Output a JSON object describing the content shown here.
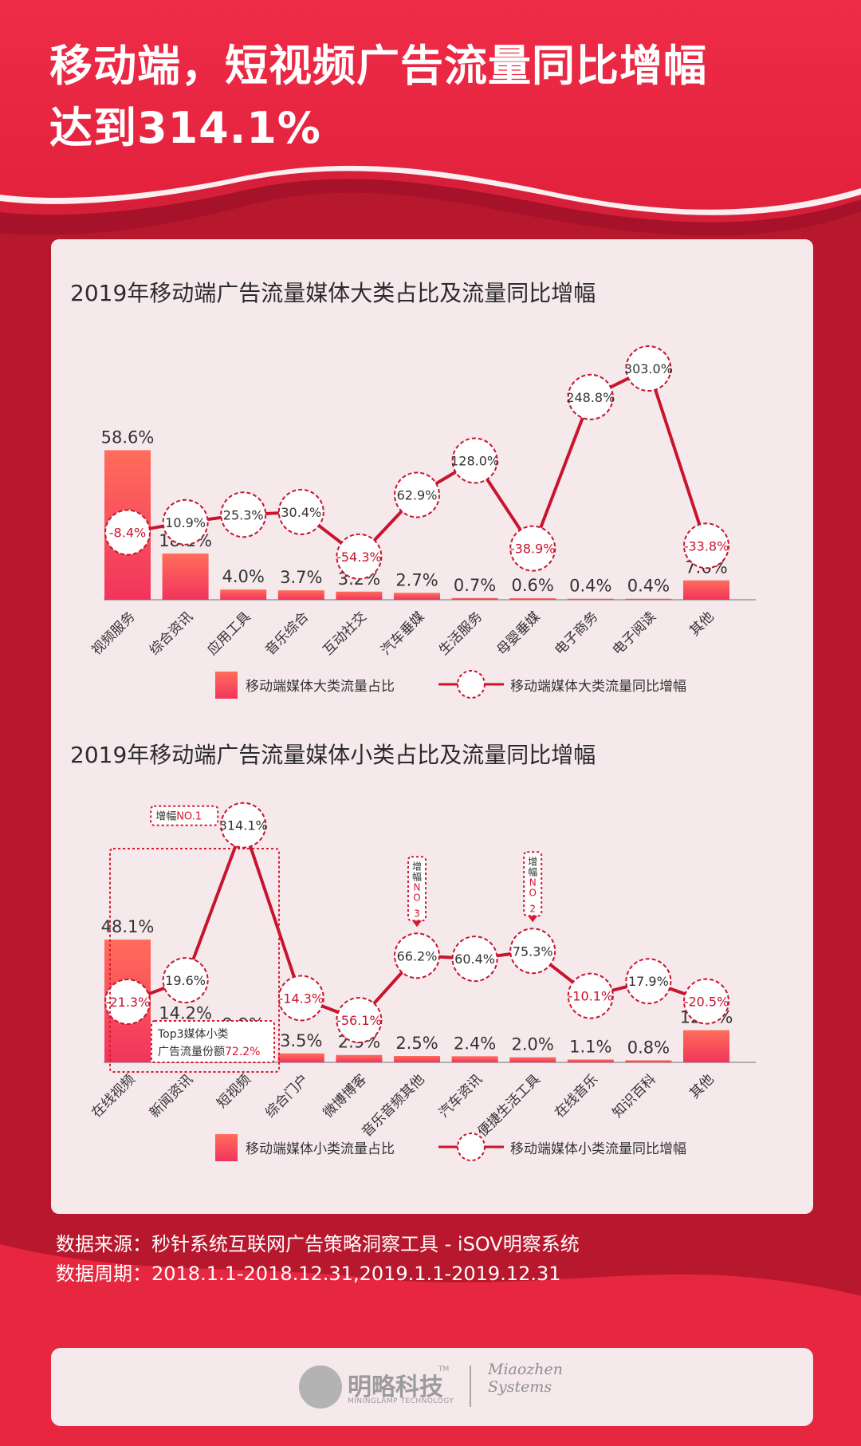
{
  "header": {
    "title_line1": "移动端，短视频广告流量同比增幅",
    "title_line2": "达到314.1%"
  },
  "colors": {
    "background": "#b8182d",
    "header_red": "#e62a45",
    "panel": "#f6e9ec",
    "bar_top": "#ff6d5b",
    "bar_bottom": "#f2345c",
    "line": "#c8152f",
    "negative_text": "#c8152f",
    "note_highlight": "#d8182f"
  },
  "chart_data": [
    {
      "type": "bar",
      "title": "2019年移动端广告流量媒体大类占比及流量同比增幅",
      "categories": [
        "视频服务",
        "综合资讯",
        "应用工具",
        "音乐综合",
        "互动社交",
        "汽车垂媒",
        "生活服务",
        "母婴垂媒",
        "电子商务",
        "电子阅读",
        "其他"
      ],
      "bar_labels": [
        "58.6%",
        "18.1%",
        "4.0%",
        "3.7%",
        "3.2%",
        "2.7%",
        "0.7%",
        "0.6%",
        "0.4%",
        "0.4%",
        "7.6%"
      ],
      "line_labels": [
        "-8.4%",
        "10.9%",
        "25.3%",
        "30.4%",
        "-54.3%",
        "62.9%",
        "128.0%",
        "-38.9%",
        "248.8%",
        "303.0%",
        "-33.8%"
      ],
      "series": [
        {
          "name": "移动端媒体大类流量占比",
          "type": "bar",
          "values": [
            58.6,
            18.1,
            4.0,
            3.7,
            3.2,
            2.7,
            0.7,
            0.6,
            0.4,
            0.4,
            7.6
          ]
        },
        {
          "name": "移动端媒体大类流量同比增幅",
          "type": "line",
          "values": [
            -8.4,
            10.9,
            25.3,
            30.4,
            -54.3,
            62.9,
            128.0,
            -38.9,
            248.8,
            303.0,
            -33.8
          ]
        }
      ],
      "legend": [
        "移动端媒体大类流量占比",
        "移动端媒体大类流量同比增幅"
      ],
      "legend_position": "bottom",
      "grid": false,
      "annotations": []
    },
    {
      "type": "bar",
      "title": "2019年移动端广告流量媒体小类占比及流量同比增幅",
      "categories": [
        "在线视频",
        "新闻资讯",
        "短视频",
        "综合门户",
        "微博博客",
        "音乐音频其他",
        "汽车资讯",
        "便捷生活工具",
        "在线音乐",
        "知识百科",
        "其他"
      ],
      "bar_labels": [
        "48.1%",
        "14.2%",
        "9.9%",
        "3.5%",
        "2.9%",
        "2.5%",
        "2.4%",
        "2.0%",
        "1.1%",
        "0.8%",
        "12.6%"
      ],
      "line_labels": [
        "-21.3%",
        "19.6%",
        "314.1%",
        "-14.3%",
        "-56.1%",
        "66.2%",
        "60.4%",
        "75.3%",
        "-10.1%",
        "17.9%",
        "-20.5%"
      ],
      "series": [
        {
          "name": "移动端媒体小类流量占比",
          "type": "bar",
          "values": [
            48.1,
            14.2,
            9.9,
            3.5,
            2.9,
            2.5,
            2.4,
            2.0,
            1.1,
            0.8,
            12.6
          ]
        },
        {
          "name": "移动端媒体小类流量同比增幅",
          "type": "line",
          "values": [
            -21.3,
            19.6,
            314.1,
            -14.3,
            -56.1,
            66.2,
            60.4,
            75.3,
            -10.1,
            17.9,
            -20.5
          ]
        }
      ],
      "legend": [
        "移动端媒体小类流量占比",
        "移动端媒体小类流量同比增幅"
      ],
      "legend_position": "bottom",
      "grid": false,
      "annotations": [
        {
          "text_a": "增幅",
          "text_b": "NO.1",
          "target": 2
        },
        {
          "text_a": "增幅",
          "text_b": "NO.2",
          "target": 7
        },
        {
          "text_a": "增幅",
          "text_b": "NO.3",
          "target": 5
        },
        {
          "text_a": "Top3媒体小类",
          "text_b": "广告流量份额",
          "text_c": "72.2%",
          "target": 0
        }
      ]
    }
  ],
  "source": {
    "line1": "数据来源：秒针系统互联网广告策略洞察工具 - iSOV明察系统",
    "line2": "数据周期：2018.1.1-2018.12.31,2019.1.1-2019.12.31"
  },
  "footer": {
    "logo_cn": "明略科技",
    "logo_tm": "TM",
    "logo_en": "MININGLAMP TECHNOLOGY",
    "logo2_line1": "Miaozhen",
    "logo2_line2": "Systems"
  }
}
